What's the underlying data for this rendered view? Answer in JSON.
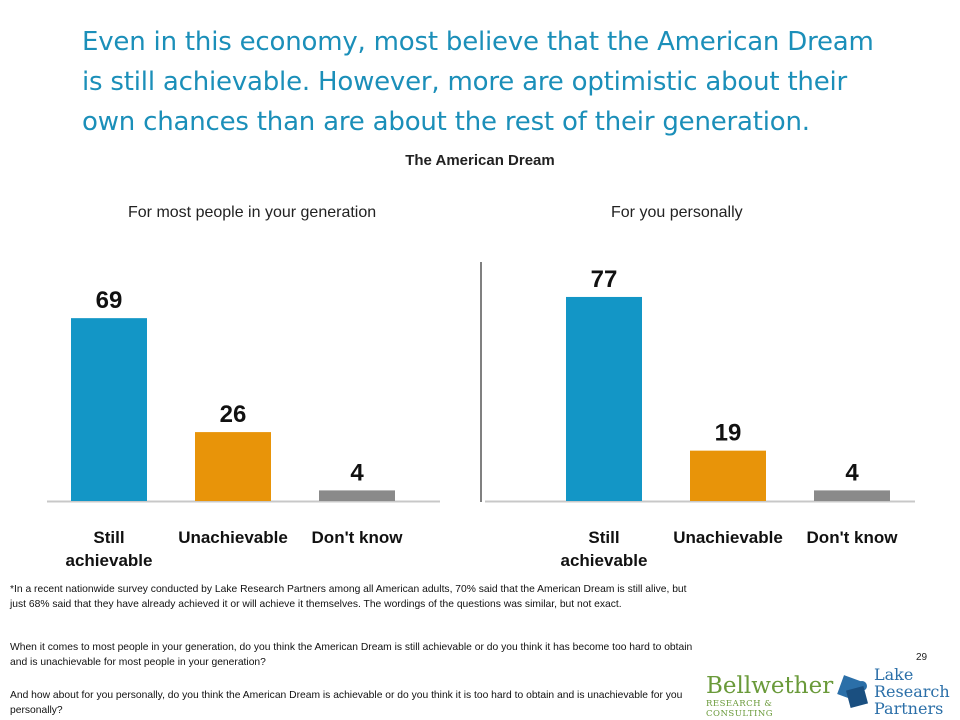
{
  "headline": "Even in this economy, most believe that the American Dream is still achievable. However, more are optimistic about their own chances than are about the rest of their generation.",
  "chart_data": [
    {
      "type": "bar",
      "title": "The American Dream",
      "subtitle": "For most people in your generation",
      "categories": [
        "Still achievable",
        "Unachievable",
        "Don't know"
      ],
      "values": [
        69,
        26,
        4
      ],
      "ylim": [
        0,
        100
      ],
      "grid": false,
      "colors": [
        "#1396c6",
        "#e89409",
        "#8a8a8a"
      ]
    },
    {
      "type": "bar",
      "title": "The American Dream",
      "subtitle": "For you personally",
      "categories": [
        "Still achievable",
        "Unachievable",
        "Don't know"
      ],
      "values": [
        77,
        19,
        4
      ],
      "ylim": [
        0,
        100
      ],
      "grid": false,
      "colors": [
        "#1396c6",
        "#e89409",
        "#8a8a8a"
      ]
    }
  ],
  "footnote": "*In a recent nationwide survey conducted by Lake Research Partners among all American adults, 70% said that the American Dream is still alive, but just 68% said that they have already achieved it or will achieve it themselves. The wordings of the questions was similar, but not exact.",
  "questions": {
    "q1": "When it comes to most people in your generation, do you think the American Dream is still achievable or do you think it has become too hard to obtain and is unachievable for most people in your generation?",
    "q2": "And how about for you personally, do you think the American Dream is achievable or do you think it is too hard to obtain and is unachievable for you personally?"
  },
  "page_number": "29",
  "logos": {
    "bellwether_name": "Bellwether",
    "bellwether_sub": "RESEARCH & CONSULTING",
    "lake_line1": "Lake",
    "lake_line2": "Research",
    "lake_line3": "Partners"
  }
}
